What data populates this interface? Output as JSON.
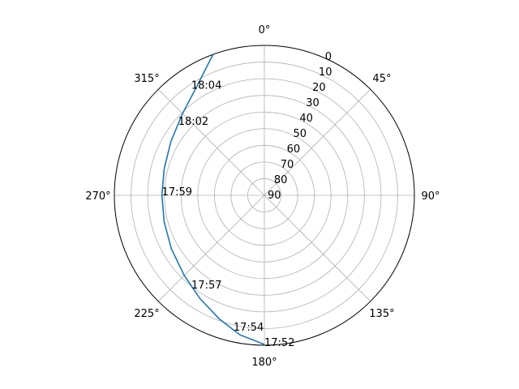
{
  "chart_data": {
    "type": "line",
    "projection": "polar",
    "theta_direction": "clockwise",
    "theta_zero": "top",
    "r_axis_inverted": true,
    "r_range": [
      90,
      0
    ],
    "r_ticks": [
      "0",
      "10",
      "20",
      "30",
      "40",
      "50",
      "60",
      "70",
      "80",
      "90"
    ],
    "theta_ticks": [
      {
        "deg": 0,
        "label": "0°"
      },
      {
        "deg": 45,
        "label": "45°"
      },
      {
        "deg": 90,
        "label": "90°"
      },
      {
        "deg": 135,
        "label": "135°"
      },
      {
        "deg": 180,
        "label": "180°"
      },
      {
        "deg": 225,
        "label": "225°"
      },
      {
        "deg": 270,
        "label": "270°"
      },
      {
        "deg": 315,
        "label": "315°"
      }
    ],
    "grid": true,
    "colors": {
      "line": "#1f77b4",
      "grid": "#b0b0b0",
      "frame": "#000000"
    },
    "series": [
      {
        "points": [
          {
            "az": 180,
            "alt": 0.5
          },
          {
            "az": 190,
            "alt": 5
          },
          {
            "az": 200,
            "alt": 11
          },
          {
            "az": 212,
            "alt": 17
          },
          {
            "az": 225,
            "alt": 22
          },
          {
            "az": 240,
            "alt": 25.6
          },
          {
            "az": 255,
            "alt": 27.8
          },
          {
            "az": 270,
            "alt": 28.5
          },
          {
            "az": 285,
            "alt": 27.8
          },
          {
            "az": 300,
            "alt": 25.3
          },
          {
            "az": 315,
            "alt": 20.6
          },
          {
            "az": 327,
            "alt": 14
          },
          {
            "az": 340,
            "alt": 0
          }
        ]
      }
    ],
    "annotations": [
      {
        "label": "17:52",
        "az": 180,
        "alt": 0.5
      },
      {
        "label": "17:54",
        "az": 193,
        "alt": 7.5
      },
      {
        "label": "17:57",
        "az": 218.5,
        "alt": 19.7
      },
      {
        "label": "17:59",
        "az": 271,
        "alt": 28.5
      },
      {
        "label": "18:02",
        "az": 310,
        "alt": 22.5
      },
      {
        "label": "18:04",
        "az": 326,
        "alt": 11.6
      }
    ]
  }
}
